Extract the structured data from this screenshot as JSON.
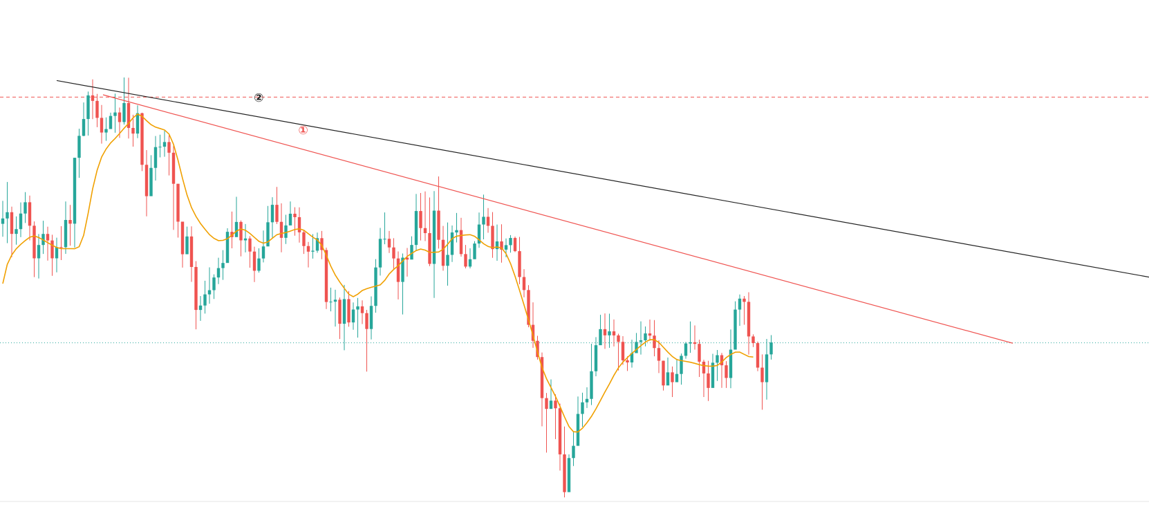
{
  "chart_data": {
    "type": "candlestick",
    "title": "",
    "xlabel": "",
    "ylabel": "",
    "x_unit": "bar index",
    "ylim": [
      0,
      100
    ],
    "xlim": [
      0,
      1662
    ],
    "grid": false,
    "legend": "none",
    "colors": {
      "up": "#26a69a",
      "down": "#ef5350",
      "ma": "#f0a000",
      "line1": "#ef5350",
      "line2": "#222222",
      "resistance": "#ef5350",
      "support": "#26a69a"
    },
    "candles": [
      [
        60.0,
        61.17,
        65.0,
        57.2
      ],
      [
        61.17,
        62.53,
        69.11,
        55.79
      ],
      [
        62.53,
        57.81,
        63.75,
        52.74
      ],
      [
        57.81,
        58.85,
        61.61,
        55.46
      ],
      [
        58.85,
        62.24,
        64.66,
        57.1
      ],
      [
        62.24,
        64.7,
        66.9,
        60.18
      ],
      [
        64.7,
        59.59,
        66.16,
        56.41
      ],
      [
        59.59,
        52.49,
        60.53,
        48.4
      ],
      [
        52.49,
        55.39,
        57.78,
        48.1
      ],
      [
        55.39,
        57.8,
        60.67,
        53.44
      ],
      [
        57.8,
        56.38,
        59.37,
        52.0
      ],
      [
        56.38,
        52.49,
        57.62,
        48.69
      ],
      [
        52.49,
        54.93,
        56.99,
        49.43
      ],
      [
        54.93,
        54.92,
        59.48,
        52.1
      ],
      [
        54.92,
        60.84,
        64.88,
        53.47
      ],
      [
        60.84,
        60.03,
        64.11,
        55.26
      ],
      [
        60.03,
        74.38,
        74.38,
        54.84
      ],
      [
        74.38,
        79.16,
        80.7,
        70.01
      ],
      [
        79.16,
        82.82,
        86.43,
        79.06
      ],
      [
        82.82,
        87.97,
        88.8,
        79.21
      ],
      [
        87.97,
        86.77,
        91.45,
        82.79
      ],
      [
        86.77,
        83.07,
        88.29,
        81.04
      ],
      [
        83.07,
        79.88,
        85.89,
        77.47
      ],
      [
        79.88,
        80.64,
        83.17,
        78.07
      ],
      [
        80.64,
        83.49,
        84.2,
        81.03
      ],
      [
        83.49,
        84.25,
        88.34,
        79.83
      ],
      [
        84.25,
        82.16,
        85.32,
        78.7
      ],
      [
        82.16,
        86.3,
        91.87,
        81.61
      ],
      [
        86.3,
        80.88,
        91.82,
        78.58
      ],
      [
        80.88,
        79.65,
        83.75,
        76.81
      ],
      [
        79.65,
        84.09,
        85.81,
        78.65
      ],
      [
        84.09,
        72.85,
        84.2,
        71.48
      ],
      [
        72.85,
        66.02,
        76.06,
        61.63
      ],
      [
        66.02,
        72.18,
        74.94,
        67.86
      ],
      [
        72.18,
        76.71,
        79.12,
        69.43
      ],
      [
        76.71,
        76.79,
        79.4,
        74.47
      ],
      [
        76.79,
        77.81,
        80.26,
        74.6
      ],
      [
        77.81,
        75.48,
        79.28,
        70.53
      ],
      [
        75.48,
        68.72,
        77.03,
        58.68
      ],
      [
        68.72,
        60.47,
        68.72,
        57.0
      ],
      [
        60.47,
        53.38,
        60.47,
        50.48
      ],
      [
        53.38,
        57.25,
        59.4,
        53.48
      ],
      [
        57.25,
        50.61,
        59.45,
        47.36
      ],
      [
        50.61,
        41.25,
        51.88,
        37.02
      ],
      [
        41.25,
        42.21,
        44.27,
        38.88
      ],
      [
        42.21,
        44.64,
        47.6,
        40.45
      ],
      [
        44.64,
        45.55,
        50.52,
        42.61
      ],
      [
        45.55,
        48.32,
        49.01,
        43.63
      ],
      [
        48.32,
        50.36,
        52.61,
        46.88
      ],
      [
        50.36,
        51.48,
        54.28,
        47.79
      ],
      [
        51.48,
        58.26,
        59.04,
        52.54
      ],
      [
        58.26,
        57.11,
        62.67,
        54.67
      ],
      [
        57.11,
        60.41,
        65.89,
        57.19
      ],
      [
        60.41,
        56.4,
        60.73,
        52.92
      ],
      [
        56.4,
        56.81,
        59.96,
        53.78
      ],
      [
        56.81,
        53.96,
        57.33,
        50.45
      ],
      [
        53.96,
        49.78,
        55.03,
        47.33
      ],
      [
        49.78,
        52.46,
        54.67,
        49.37
      ],
      [
        52.46,
        55.08,
        58.55,
        51.6
      ],
      [
        55.08,
        60.34,
        63.89,
        56.64
      ],
      [
        60.34,
        64.14,
        65.8,
        56.92
      ],
      [
        64.14,
        60.43,
        68.04,
        59.95
      ],
      [
        60.43,
        56.95,
        64.46,
        53.8
      ],
      [
        56.95,
        59.65,
        61.98,
        55.61
      ],
      [
        59.65,
        62.2,
        64.88,
        60.45
      ],
      [
        62.2,
        61.45,
        63.62,
        57.41
      ],
      [
        61.45,
        58.15,
        63.59,
        55.91
      ],
      [
        58.15,
        55.16,
        58.62,
        53.44
      ],
      [
        55.16,
        53.94,
        56.07,
        50.5
      ],
      [
        53.94,
        54.15,
        57.75,
        52.42
      ],
      [
        54.15,
        56.88,
        58.1,
        53.69
      ],
      [
        56.88,
        54.29,
        58.45,
        52.3
      ],
      [
        54.29,
        42.98,
        54.81,
        41.45
      ],
      [
        42.98,
        43.05,
        46.11,
        40.94
      ],
      [
        43.05,
        43.48,
        45.65,
        37.64
      ],
      [
        43.48,
        38.24,
        43.95,
        34.92
      ],
      [
        38.24,
        43.61,
        46.7,
        32.48
      ],
      [
        43.61,
        38.53,
        45.37,
        37.59
      ],
      [
        38.53,
        41.34,
        42.88,
        36.93
      ],
      [
        41.34,
        42.03,
        43.86,
        35.23
      ],
      [
        42.03,
        40.56,
        43.34,
        38.17
      ],
      [
        40.56,
        37.1,
        41.26,
        27.82
      ],
      [
        37.1,
        42.13,
        44.21,
        34.82
      ],
      [
        42.13,
        50.5,
        52.31,
        40.64
      ],
      [
        50.5,
        56.73,
        59.12,
        48.74
      ],
      [
        56.73,
        56.74,
        62.49,
        55.55
      ],
      [
        56.74,
        54.86,
        58.45,
        53.65
      ],
      [
        54.86,
        52.46,
        56.87,
        50.09
      ],
      [
        52.46,
        47.35,
        53.99,
        43.54
      ],
      [
        47.35,
        52.64,
        53.54,
        40.27
      ],
      [
        52.64,
        52.22,
        54.75,
        48.51
      ],
      [
        52.22,
        55.4,
        57.29,
        52.88
      ],
      [
        55.4,
        62.79,
        66.51,
        54.14
      ],
      [
        62.79,
        59.07,
        66.71,
        56.39
      ],
      [
        59.07,
        57.98,
        67.06,
        56.25
      ],
      [
        57.98,
        51.28,
        65.73,
        50.79
      ],
      [
        51.28,
        62.87,
        67.13,
        43.86
      ],
      [
        62.87,
        56.52,
        70.32,
        54.62
      ],
      [
        56.52,
        50.86,
        59.55,
        49.79
      ],
      [
        50.86,
        53.24,
        60.3,
        46.53
      ],
      [
        53.24,
        58.12,
        59.63,
        51.7
      ],
      [
        58.12,
        58.63,
        62.36,
        55.95
      ],
      [
        58.63,
        53.41,
        61.31,
        52.87
      ],
      [
        53.41,
        50.69,
        55.4,
        50.31
      ],
      [
        50.69,
        52.29,
        54.67,
        50.31
      ],
      [
        52.29,
        55.71,
        56.23,
        52.78
      ],
      [
        55.71,
        59.85,
        62.47,
        54.79
      ],
      [
        59.85,
        61.53,
        66.35,
        56.63
      ],
      [
        61.53,
        59.56,
        63.44,
        58.06
      ],
      [
        59.56,
        54.49,
        62.55,
        52.59
      ],
      [
        54.49,
        56.17,
        59.85,
        51.95
      ],
      [
        56.17,
        54.38,
        59.91,
        51.55
      ],
      [
        54.38,
        55.36,
        56.82,
        52.73
      ],
      [
        55.36,
        56.92,
        57.54,
        53.73
      ],
      [
        56.92,
        54.05,
        57.23,
        53.84
      ],
      [
        54.05,
        48.42,
        57.15,
        46.84
      ],
      [
        48.42,
        45.58,
        50.13,
        43.99
      ],
      [
        45.58,
        38.01,
        46.64,
        37.48
      ],
      [
        38.01,
        34.53,
        42.91,
        33.01
      ],
      [
        34.53,
        30.99,
        35.61,
        30.44
      ],
      [
        30.99,
        22.05,
        31.99,
        15.91
      ],
      [
        22.05,
        19.7,
        23.17,
        10.18
      ],
      [
        19.7,
        21.5,
        26.13,
        20.07
      ],
      [
        21.5,
        19.84,
        22.87,
        13.13
      ],
      [
        19.84,
        9.8,
        20.85,
        6.27
      ],
      [
        9.8,
        1.58,
        15.87,
        0.43
      ],
      [
        1.58,
        9.0,
        9.81,
        3.56
      ],
      [
        9.0,
        11.66,
        14.88,
        7.27
      ],
      [
        11.66,
        18.61,
        22.4,
        11.77
      ],
      [
        18.61,
        21.13,
        23.23,
        15.79
      ],
      [
        21.13,
        21.88,
        24.42,
        19.89
      ],
      [
        21.88,
        27.9,
        33.89,
        20.53
      ],
      [
        27.9,
        33.57,
        35.33,
        26.8
      ],
      [
        33.57,
        37.07,
        40.2,
        34.17
      ],
      [
        37.07,
        35.72,
        40.49,
        32.77
      ],
      [
        35.72,
        36.59,
        40.44,
        33.01
      ],
      [
        36.59,
        35.7,
        39.17,
        33.3
      ],
      [
        35.7,
        34.3,
        36.07,
        28.07
      ],
      [
        34.3,
        30.29,
        35.54,
        29.3
      ],
      [
        30.29,
        29.82,
        31.15,
        27.96
      ],
      [
        29.82,
        31.85,
        34.77,
        28.69
      ],
      [
        31.85,
        34.29,
        36.23,
        33.65
      ],
      [
        34.29,
        34.64,
        38.76,
        31.53
      ],
      [
        34.64,
        36.14,
        37.66,
        33.33
      ],
      [
        36.14,
        35.66,
        39.16,
        34.54
      ],
      [
        35.66,
        32.95,
        39.04,
        31.16
      ],
      [
        32.95,
        30.19,
        34.63,
        27.5
      ],
      [
        30.19,
        24.81,
        30.21,
        23.71
      ],
      [
        24.81,
        27.66,
        30.89,
        25.23
      ],
      [
        27.66,
        25.52,
        28.94,
        22.28
      ],
      [
        25.52,
        27.31,
        30.6,
        25.6
      ],
      [
        27.31,
        31.26,
        31.75,
        24.99
      ],
      [
        31.26,
        33.95,
        34.29,
        30.63
      ],
      [
        33.95,
        34.21,
        38.75,
        31.91
      ],
      [
        34.21,
        33.86,
        37.87,
        32.6
      ],
      [
        33.86,
        29.98,
        34.77,
        26.66
      ],
      [
        29.98,
        27.43,
        30.4,
        22.29
      ],
      [
        27.43,
        24.27,
        30.17,
        21.43
      ],
      [
        24.27,
        29.76,
        31.71,
        25.17
      ],
      [
        29.76,
        31.4,
        32.53,
        25.8
      ],
      [
        31.4,
        29.2,
        31.89,
        24.29
      ],
      [
        29.2,
        26.44,
        30.11,
        24.26
      ],
      [
        26.44,
        32.61,
        37.0,
        24.2
      ],
      [
        32.61,
        41.33,
        43.12,
        36.29
      ],
      [
        41.33,
        43.71,
        44.61,
        37.78
      ],
      [
        43.71,
        43.01,
        44.27,
        38.03
      ],
      [
        43.01,
        35.48,
        45.11,
        31.53
      ],
      [
        35.48,
        34.03,
        35.93,
        33.17
      ],
      [
        34.03,
        28.69,
        34.37,
        27.92
      ],
      [
        28.69,
        25.52,
        31.57,
        19.52
      ],
      [
        25.52,
        31.57,
        34.94,
        21.73
      ],
      [
        31.57,
        34.18,
        35.77,
        30.44
      ]
    ],
    "ma": [
      46.98,
      51.16,
      53.23,
      54.56,
      55.52,
      56.35,
      57.08,
      57.37,
      57.02,
      56.49,
      55.9,
      55.34,
      54.85,
      54.59,
      54.6,
      54.6,
      54.58,
      55.01,
      57.5,
      62.29,
      67.6,
      71.67,
      74.55,
      76.3,
      77.6,
      78.58,
      79.67,
      80.82,
      81.89,
      83.08,
      83.88,
      83.41,
      82.45,
      81.6,
      81.05,
      80.75,
      80.43,
      79.55,
      77.3,
      73.86,
      69.89,
      66.29,
      63.54,
      61.61,
      60.08,
      58.83,
      57.65,
      56.83,
      56.34,
      56.4,
      56.78,
      57.53,
      58.42,
      58.88,
      58.62,
      57.9,
      57.05,
      56.19,
      55.78,
      56.05,
      56.86,
      57.64,
      57.91,
      58.1,
      58.42,
      58.76,
      58.91,
      58.6,
      57.84,
      57.09,
      56.47,
      55.32,
      53.15,
      50.78,
      48.84,
      47.32,
      45.97,
      44.68,
      44.13,
      44.68,
      45.48,
      45.88,
      46.18,
      46.44,
      46.7,
      47.69,
      49.09,
      50.08,
      50.89,
      51.91,
      52.9,
      53.57,
      54.18,
      54.51,
      54.28,
      53.79,
      53.81,
      53.87,
      54.46,
      55.54,
      56.77,
      57.32,
      57.47,
      57.57,
      57.64,
      57.29,
      56.5,
      55.67,
      55.07,
      54.81,
      54.96,
      54.75,
      53.49,
      51.35,
      48.59,
      45.52,
      42.33,
      39.06,
      35.71,
      32.08,
      28.73,
      26.28,
      24.36,
      22.43,
      20.26,
      17.96,
      15.87,
      14.73,
      14.69,
      15.5,
      16.7,
      18.07,
      19.72,
      21.54,
      23.37,
      25.13,
      27.0,
      28.65,
      29.9,
      30.86,
      31.8,
      32.62,
      33.46,
      34.23,
      34.77,
      34.76,
      34.18,
      33.13,
      32.07,
      31.11,
      30.44,
      30.21,
      30.05,
      29.87,
      29.62,
      29.33,
      29.12,
      29.02,
      29.0,
      29.16,
      29.91,
      30.89,
      31.54,
      32.05,
      32.08,
      31.58,
      31.1,
      31.0
    ],
    "trendlines": [
      {
        "label": "①",
        "from": [
          149,
          88.1
        ],
        "to": [
          1465,
          34.0
        ]
      },
      {
        "label": "②",
        "from": [
          82,
          91.2
        ],
        "to": [
          1662,
          48.4
        ]
      }
    ],
    "hlines": [
      {
        "kind": "resistance",
        "style": "dashed",
        "y": 87.6
      },
      {
        "kind": "support",
        "style": "dotted",
        "y": 34.1
      }
    ]
  }
}
